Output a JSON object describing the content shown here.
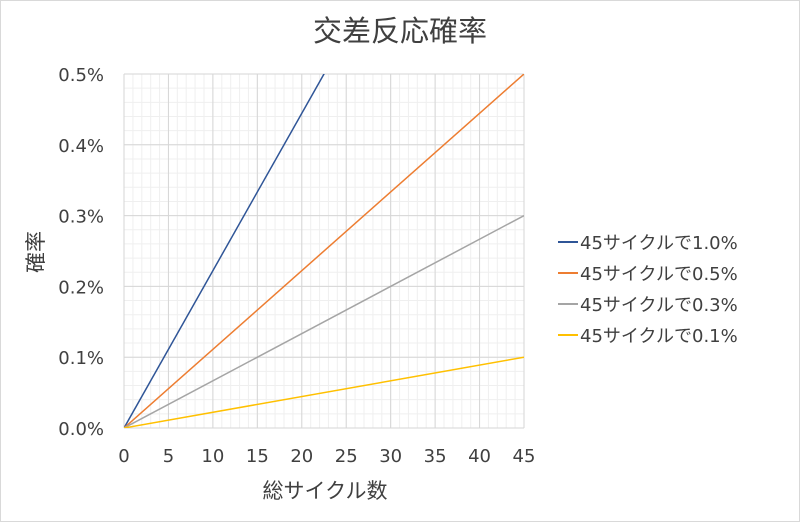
{
  "chart_data": {
    "type": "line",
    "title": "交差反応確率",
    "xlabel": "総サイクル数",
    "ylabel": "確率",
    "xlim": [
      0,
      45
    ],
    "ylim": [
      0,
      0.5
    ],
    "x_ticks": [
      "0",
      "5",
      "10",
      "15",
      "20",
      "25",
      "30",
      "35",
      "40",
      "45"
    ],
    "x_tick_values": [
      0,
      5,
      10,
      15,
      20,
      25,
      30,
      35,
      40,
      45
    ],
    "y_ticks": [
      "0.0%",
      "0.1%",
      "0.2%",
      "0.3%",
      "0.4%",
      "0.5%"
    ],
    "y_tick_values": [
      0,
      0.1,
      0.2,
      0.3,
      0.4,
      0.5
    ],
    "grid": true,
    "legend_position": "right",
    "series": [
      {
        "name": "45サイクルで1.0%",
        "color": "#2F5597",
        "x": [
          0,
          45
        ],
        "y": [
          0,
          1.0
        ]
      },
      {
        "name": "45サイクルで0.5%",
        "color": "#ED7D31",
        "x": [
          0,
          45
        ],
        "y": [
          0,
          0.5
        ]
      },
      {
        "name": "45サイクルで0.3%",
        "color": "#A5A5A5",
        "x": [
          0,
          45
        ],
        "y": [
          0,
          0.3
        ]
      },
      {
        "name": "45サイクルで0.1%",
        "color": "#FFC000",
        "x": [
          0,
          45
        ],
        "y": [
          0,
          0.1
        ]
      }
    ]
  }
}
